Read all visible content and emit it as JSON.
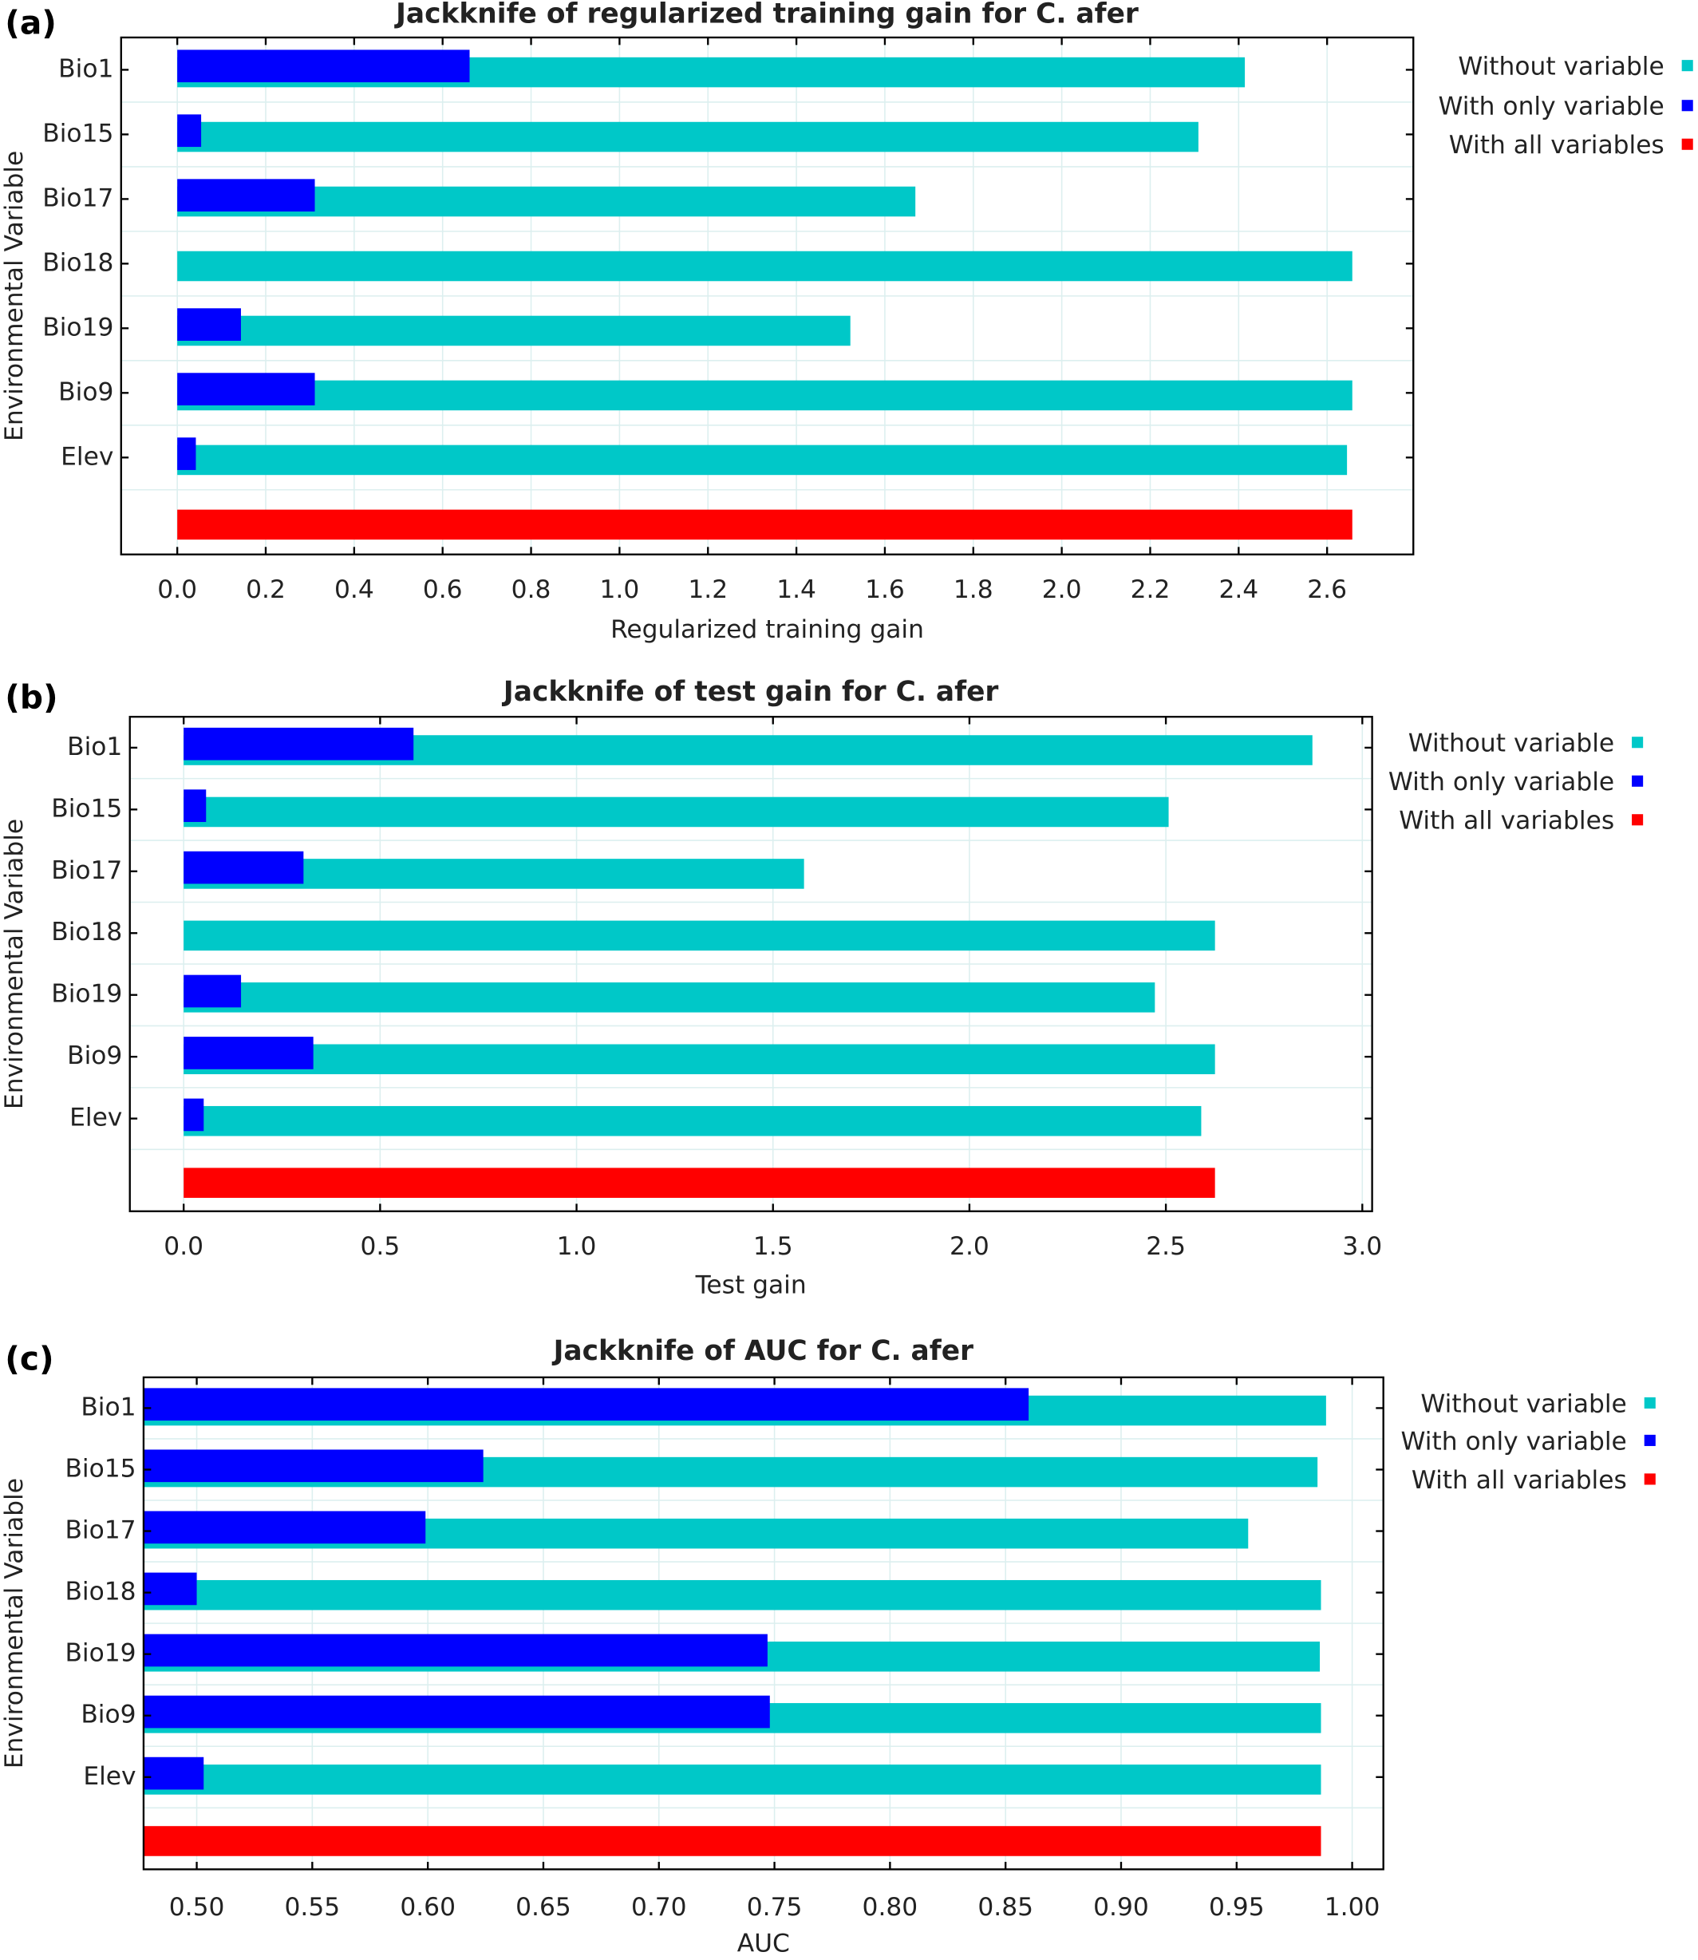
{
  "chart_data": [
    {
      "type": "bar",
      "orientation": "horizontal",
      "panel_label": "(a)",
      "title": "Jackknife of regularized training gain for C. afer",
      "xlabel": "Regularized training gain",
      "ylabel": "Environmental Variable",
      "categories": [
        "Bio1",
        "Bio15",
        "Bio17",
        "Bio18",
        "Bio19",
        "Bio9",
        "Elev",
        null
      ],
      "series": [
        {
          "name": "Without variable",
          "color": "#00c8c8",
          "values": [
            2.414,
            2.309,
            1.669,
            2.657,
            1.522,
            2.657,
            2.645,
            null
          ]
        },
        {
          "name": "With only variable",
          "color": "#0000ff",
          "values": [
            0.661,
            0.054,
            0.311,
            0,
            0.144,
            0.311,
            0.042,
            null
          ]
        },
        {
          "name": "With all variables",
          "color": "#ff0000",
          "values": [
            null,
            null,
            null,
            null,
            null,
            null,
            null,
            2.657
          ]
        }
      ],
      "xlim": [
        -0.127,
        2.795
      ],
      "xticks": [
        {
          "value": 0,
          "label": "0.0"
        },
        0.2,
        0.4,
        0.6,
        0.8,
        {
          "value": 1,
          "label": "1.0"
        },
        1.2,
        1.4,
        1.6,
        1.8,
        {
          "value": 2,
          "label": "2.0"
        },
        2.2,
        2.4,
        2.6
      ],
      "grid": true,
      "legend": "right"
    },
    {
      "type": "bar",
      "orientation": "horizontal",
      "panel_label": "(b)",
      "title": "Jackknife of test gain for C. afer",
      "xlabel": "Test gain",
      "ylabel": "Environmental Variable",
      "categories": [
        "Bio1",
        "Bio15",
        "Bio17",
        "Bio18",
        "Bio19",
        "Bio9",
        "Elev",
        null
      ],
      "series": [
        {
          "name": "Without variable",
          "color": "#00c8c8",
          "values": [
            2.873,
            2.507,
            1.579,
            2.625,
            2.472,
            2.625,
            2.59,
            null
          ]
        },
        {
          "name": "With only variable",
          "color": "#0000ff",
          "values": [
            0.585,
            0.057,
            0.305,
            0,
            0.146,
            0.33,
            0.051,
            null
          ]
        },
        {
          "name": "With all variables",
          "color": "#ff0000",
          "values": [
            null,
            null,
            null,
            null,
            null,
            null,
            null,
            2.625
          ]
        }
      ],
      "xlim": [
        -0.137,
        3.025
      ],
      "xticks": [
        {
          "value": 0,
          "label": "0.0"
        },
        0.5,
        {
          "value": 1,
          "label": "1.0"
        },
        1.5,
        {
          "value": 2,
          "label": "2.0"
        },
        2.5,
        {
          "value": 3,
          "label": "3.0"
        }
      ],
      "grid": true,
      "legend": "right"
    },
    {
      "type": "bar",
      "orientation": "horizontal",
      "panel_label": "(c)",
      "title": "Jackknife of AUC for C. afer",
      "xlabel": "AUC",
      "ylabel": "Environmental Variable",
      "categories": [
        "Bio1",
        "Bio15",
        "Bio17",
        "Bio18",
        "Bio19",
        "Bio9",
        "Elev",
        null
      ],
      "series": [
        {
          "name": "Without variable",
          "color": "#00c8c8",
          "values": [
            0.9887,
            0.985,
            0.955,
            0.9865,
            0.986,
            0.9865,
            0.9865,
            null
          ]
        },
        {
          "name": "With only variable",
          "color": "#0000ff",
          "values": [
            0.86,
            0.624,
            0.599,
            0.5,
            0.747,
            0.748,
            0.503,
            null
          ]
        },
        {
          "name": "With all variables",
          "color": "#ff0000",
          "values": [
            null,
            null,
            null,
            null,
            null,
            null,
            null,
            0.9865
          ]
        }
      ],
      "xlim": [
        0.477,
        1.0135
      ],
      "xticks": [
        {
          "value": 0.5,
          "label": "0.50"
        },
        0.55,
        {
          "value": 0.6,
          "label": "0.60"
        },
        0.65,
        {
          "value": 0.7,
          "label": "0.70"
        },
        0.75,
        {
          "value": 0.8,
          "label": "0.80"
        },
        0.85,
        {
          "value": 0.9,
          "label": "0.90"
        },
        0.95,
        {
          "value": 1,
          "label": "1.00"
        }
      ],
      "grid": true,
      "legend": "right"
    }
  ]
}
